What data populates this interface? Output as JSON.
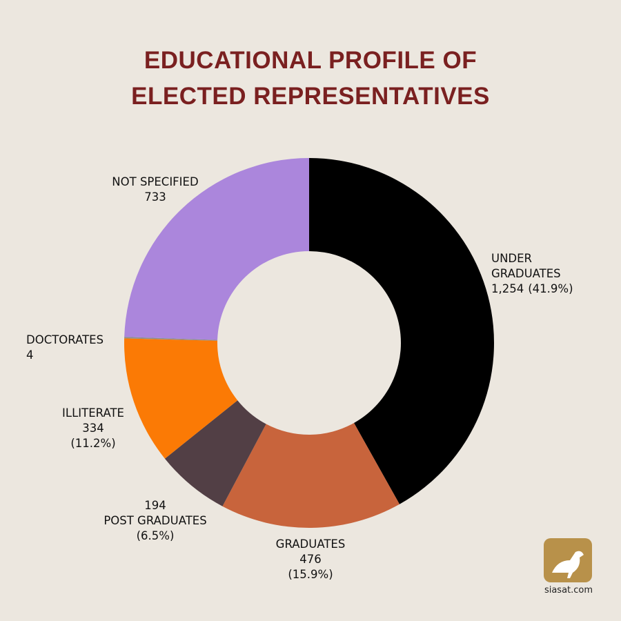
{
  "chart_data": {
    "type": "donut",
    "title": "EDUCATIONAL PROFILE OF ELECTED REPRESENTATIVES",
    "categories": [
      "UNDER GRADUATES",
      "GRADUATES",
      "POST GRADUATES",
      "ILLITERATE",
      "DOCTORATES",
      "NOT SPECIFIED"
    ],
    "values": [
      1254,
      476,
      194,
      334,
      4,
      733
    ],
    "value_labels": [
      "1,254",
      "476",
      "194",
      "334",
      "4",
      "733"
    ],
    "percent_labels": [
      "(41.9%)",
      "(15.9%)",
      "(6.5%)",
      "(11.2%)",
      null,
      null
    ],
    "colors": [
      "#000000",
      "#c8643c",
      "#523f45",
      "#fb7a05",
      "#8f8f8f",
      "#ab86dc"
    ]
  },
  "brand": "siasat.com"
}
